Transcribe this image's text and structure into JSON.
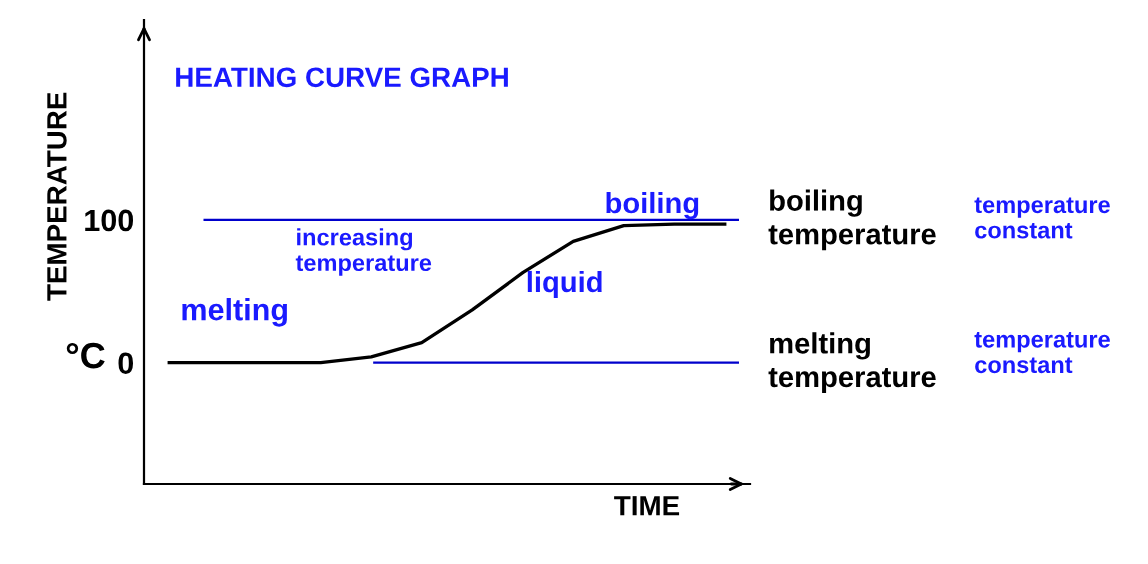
{
  "chart_data": {
    "type": "line",
    "title": "HEATING CURVE GRAPH",
    "xlabel": "TIME",
    "ylabel": "TEMPERATURE",
    "categories": [
      null,
      null,
      null,
      null,
      null,
      null,
      null,
      null,
      null,
      null,
      null,
      null
    ],
    "series": [
      {
        "color": "#000000",
        "values": [
          0,
          0,
          0,
          0,
          4,
          14,
          37,
          63,
          85,
          96,
          97,
          97
        ]
      }
    ],
    "ylim": [
      -85,
      240
    ],
    "yticks": [
      0,
      100
    ],
    "tick_labels": "y",
    "grid": false,
    "marker": "none",
    "line_style": "solid",
    "ref_lines": [
      {
        "axis": "y",
        "value": 100,
        "label": "boiling temperature",
        "color": "#0000cc"
      },
      {
        "axis": "y",
        "value": 0,
        "label": "melting temperature",
        "color": "#0000cc"
      }
    ],
    "annotations": [
      "°C",
      "melting",
      "increasing temperature",
      "liquid",
      "boiling",
      "temperature constant",
      "temperature constant"
    ]
  }
}
